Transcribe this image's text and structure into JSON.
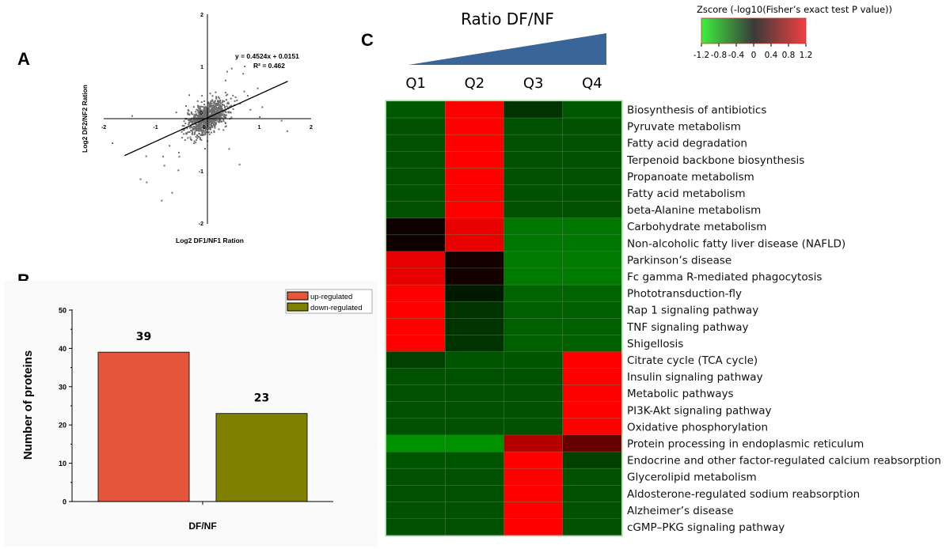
{
  "chart_data": [
    {
      "panel": "A",
      "type": "scatter",
      "xlabel": "Log2 DF1/NF1 Ration",
      "ylabel": "Log2 DF2/NF2 Ration",
      "xlim": [
        -2,
        2
      ],
      "ylim": [
        -2,
        2
      ],
      "xticks": [
        "-2",
        "-1",
        "0",
        "1",
        "2"
      ],
      "yticks": [
        "2",
        "1",
        "0",
        "-1",
        "-2"
      ],
      "regression": {
        "slope": 0.4524,
        "intercept": 0.0151,
        "x_range": [
          -1.6,
          1.55
        ]
      },
      "equation_label": "y = 0.4524x + 0.0151",
      "r2_label": "R² = 0.462",
      "cluster": {
        "n": 900,
        "mean": [
          0.0,
          0.02
        ],
        "sd": [
          0.2,
          0.17
        ],
        "corr": 0.55
      },
      "outliers": [
        [
          -1.45,
          0.05
        ],
        [
          -1.83,
          -0.47
        ],
        [
          -1.18,
          -0.72
        ],
        [
          -1.29,
          -1.16
        ],
        [
          -1.17,
          -1.22
        ],
        [
          -0.83,
          -0.9
        ],
        [
          -0.88,
          -1.57
        ],
        [
          -0.68,
          -1.42
        ],
        [
          -0.56,
          -0.99
        ],
        [
          -0.55,
          -0.65
        ],
        [
          -0.73,
          -0.52
        ],
        [
          -0.6,
          0.12
        ],
        [
          0.38,
          0.9
        ],
        [
          0.47,
          0.96
        ],
        [
          0.72,
          1.0
        ],
        [
          0.69,
          0.86
        ],
        [
          0.97,
          0.58
        ],
        [
          0.71,
          0.52
        ],
        [
          1.06,
          0.22
        ],
        [
          1.01,
          0.03
        ],
        [
          1.43,
          -0.04
        ],
        [
          1.54,
          -0.24
        ],
        [
          0.62,
          -0.88
        ],
        [
          0.83,
          0.17
        ],
        [
          0.57,
          0.35
        ],
        [
          0.42,
          -0.58
        ],
        [
          -0.35,
          0.45
        ],
        [
          0.35,
          0.73
        ]
      ]
    },
    {
      "panel": "B",
      "type": "bar",
      "categories": [
        "up-regulated",
        "down-regulated"
      ],
      "values": [
        39,
        23
      ],
      "value_labels": [
        "39",
        "23"
      ],
      "colors": [
        "#e5553b",
        "#808000"
      ],
      "xlabel": "DF/NF",
      "ylabel": "Number of proteins",
      "ylim": [
        0,
        50
      ],
      "yticks": [
        "0",
        "10",
        "20",
        "30",
        "40",
        "50"
      ],
      "legend": [
        "up-regulated",
        "down-regulated"
      ],
      "legend_position": "top-right"
    },
    {
      "panel": "C",
      "type": "heatmap",
      "title": "Ratio  DF/NF",
      "columns": [
        "Q1",
        "Q2",
        "Q3",
        "Q4"
      ],
      "colorbar_title": "Zscore (-log10(Fisher’s exact test P value))",
      "colorbar_ticks": [
        "-1.2",
        "-0.8",
        "-0.4",
        "0",
        "0.4",
        "0.8",
        "1.2"
      ],
      "zlim": [
        -1.2,
        1.2
      ],
      "rows": [
        {
          "label": "Biosynthesis of antibiotics",
          "values": [
            -0.42,
            1.2,
            -0.24,
            -0.42
          ]
        },
        {
          "label": "Pyruvate metabolism",
          "values": [
            -0.38,
            1.2,
            -0.38,
            -0.38
          ]
        },
        {
          "label": "Fatty acid degradation",
          "values": [
            -0.38,
            1.2,
            -0.38,
            -0.38
          ]
        },
        {
          "label": "Terpenoid backbone biosynthesis",
          "values": [
            -0.38,
            1.2,
            -0.38,
            -0.38
          ]
        },
        {
          "label": "Propanoate metabolism",
          "values": [
            -0.38,
            1.2,
            -0.38,
            -0.38
          ]
        },
        {
          "label": "Fatty acid metabolism",
          "values": [
            -0.38,
            1.2,
            -0.38,
            -0.38
          ]
        },
        {
          "label": "beta-Alanine metabolism",
          "values": [
            -0.38,
            1.2,
            -0.38,
            -0.38
          ]
        },
        {
          "label": "Carbohydrate metabolism",
          "values": [
            0.07,
            1.09,
            -0.56,
            -0.56
          ]
        },
        {
          "label": "Non-alcoholic fatty liver disease (NAFLD)",
          "values": [
            0.07,
            1.09,
            -0.56,
            -0.56
          ]
        },
        {
          "label": "Parkinson’s disease",
          "values": [
            1.09,
            0.1,
            -0.58,
            -0.58
          ]
        },
        {
          "label": "Fc gamma R-mediated phagocytosis",
          "values": [
            1.09,
            0.1,
            -0.58,
            -0.58
          ]
        },
        {
          "label": "Phototransduction-fly",
          "values": [
            1.2,
            -0.12,
            -0.47,
            -0.47
          ]
        },
        {
          "label": "Rap 1 signaling pathway",
          "values": [
            1.2,
            -0.24,
            -0.45,
            -0.45
          ]
        },
        {
          "label": "TNF signaling pathway",
          "values": [
            1.2,
            -0.24,
            -0.45,
            -0.45
          ]
        },
        {
          "label": "Shigellosis",
          "values": [
            1.2,
            -0.24,
            -0.45,
            -0.45
          ]
        },
        {
          "label": "Citrate cycle (TCA cycle)",
          "values": [
            -0.3,
            -0.4,
            -0.4,
            1.2
          ]
        },
        {
          "label": "Insulin signaling pathway",
          "values": [
            -0.38,
            -0.38,
            -0.38,
            1.2
          ]
        },
        {
          "label": "Metabolic pathways",
          "values": [
            -0.38,
            -0.38,
            -0.38,
            1.2
          ]
        },
        {
          "label": "PI3K-Akt signaling pathway",
          "values": [
            -0.38,
            -0.38,
            -0.38,
            1.2
          ]
        },
        {
          "label": "Oxidative phosphorylation",
          "values": [
            -0.38,
            -0.38,
            -0.38,
            1.2
          ]
        },
        {
          "label": "Protein processing in endoplasmic reticulum",
          "values": [
            -0.68,
            -0.68,
            0.85,
            0.47
          ]
        },
        {
          "label": "Endocrine and other factor-regulated calcium reabsorption",
          "values": [
            -0.4,
            -0.4,
            1.2,
            -0.3
          ]
        },
        {
          "label": "Glycerolipid metabolism",
          "values": [
            -0.38,
            -0.38,
            1.2,
            -0.38
          ]
        },
        {
          "label": "Aldosterone-regulated sodium reabsorption",
          "values": [
            -0.38,
            -0.38,
            1.2,
            -0.38
          ]
        },
        {
          "label": "Alzheimer’s disease",
          "values": [
            -0.38,
            -0.38,
            1.2,
            -0.38
          ]
        },
        {
          "label": "cGMP–PKG signaling pathway",
          "values": [
            -0.38,
            -0.38,
            1.2,
            -0.38
          ]
        }
      ]
    }
  ],
  "panel_labels": [
    "A",
    "B",
    "C"
  ],
  "colors": {
    "triangle": "#3a6598",
    "axis": "#000000",
    "scatter_point": "#6e6e6e",
    "panel_b_bg": "#fafafa"
  }
}
